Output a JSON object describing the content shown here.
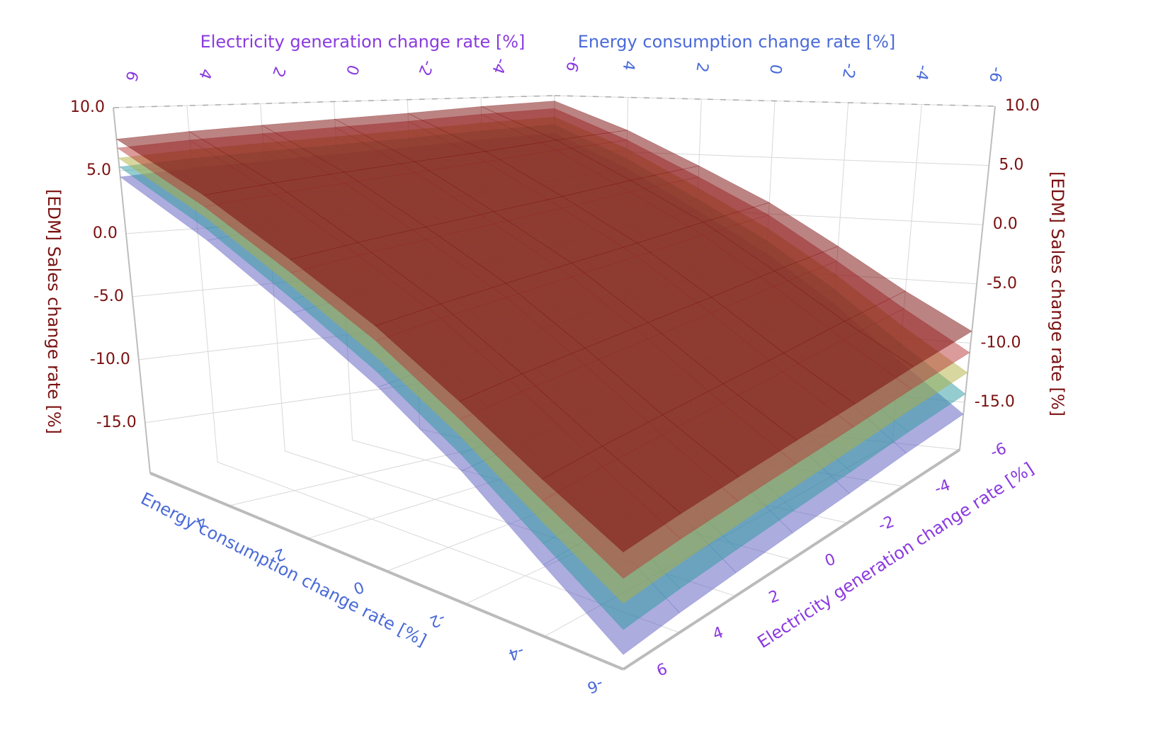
{
  "chart_data": {
    "type": "surface3d",
    "x_label": "Energy consumption change rate [%]",
    "y_label": "Electricity generation change rate [%]",
    "z_label": "[EDM] Sales change rate [%]",
    "x": [
      -6,
      -4,
      -2,
      0,
      2,
      4,
      6
    ],
    "y": [
      -6,
      -4,
      -2,
      0,
      2,
      4,
      6
    ],
    "xlim": [
      -6,
      6
    ],
    "ylim": [
      -6,
      6
    ],
    "zlim": [
      -19,
      10
    ],
    "xticks": [
      -6,
      -4,
      -2,
      0,
      2,
      4
    ],
    "yticks": [
      -6,
      -4,
      -2,
      0,
      2,
      4,
      6
    ],
    "zticks": [
      {
        "value": -15,
        "label": "-15.0"
      },
      {
        "value": -10,
        "label": "-10.0"
      },
      {
        "value": -5,
        "label": "-5.0"
      },
      {
        "value": 0,
        "label": "0.0"
      },
      {
        "value": 5,
        "label": "5.0"
      },
      {
        "value": 10,
        "label": "10.0"
      }
    ],
    "grid": true,
    "series": [
      {
        "color": "#5a5ac0",
        "values": [
          [
            -16,
            -16.3,
            -16.7,
            -17,
            -17.3,
            -17.6,
            -18
          ],
          [
            -12,
            -12.3,
            -12.7,
            -13,
            -13.3,
            -13.6,
            -14
          ],
          [
            -7.5,
            -7.8,
            -8.2,
            -8.5,
            -8.8,
            -9.1,
            -9.5
          ],
          [
            -3.5,
            -3.8,
            -4.2,
            -4.5,
            -4.8,
            -5.1,
            -5.5
          ],
          [
            0,
            -0.3,
            -0.7,
            -1,
            -1.3,
            -1.6,
            -2
          ],
          [
            3.5,
            3.2,
            2.8,
            2.5,
            2.2,
            1.9,
            1.5
          ],
          [
            6.5,
            6.2,
            5.8,
            5.5,
            5.2,
            4.9,
            4.5
          ]
        ]
      },
      {
        "color": "#2a9aa0",
        "values": [
          [
            -14.3,
            -14.6,
            -15,
            -15.3,
            -15.6,
            -15.9,
            -16.3
          ],
          [
            -10.5,
            -10.8,
            -11.2,
            -11.5,
            -11.8,
            -12.1,
            -12.5
          ],
          [
            -6.3,
            -6.6,
            -7,
            -7.3,
            -7.6,
            -7.9,
            -8.3
          ],
          [
            -2.4,
            -2.7,
            -3.1,
            -3.4,
            -3.7,
            -4,
            -4.4
          ],
          [
            1,
            0.7,
            0.3,
            0,
            -0.3,
            -0.6,
            -1
          ],
          [
            4.4,
            4.1,
            3.7,
            3.4,
            3.1,
            2.8,
            2.4
          ],
          [
            7.3,
            7,
            6.6,
            6.3,
            6,
            5.7,
            5.3
          ]
        ]
      },
      {
        "color": "#b0b040",
        "values": [
          [
            -12.5,
            -12.8,
            -13.2,
            -13.5,
            -13.8,
            -14.1,
            -14.5
          ],
          [
            -9,
            -9.3,
            -9.7,
            -10,
            -10.3,
            -10.6,
            -11
          ],
          [
            -5,
            -5.3,
            -5.7,
            -6,
            -6.3,
            -6.6,
            -7
          ],
          [
            -1.3,
            -1.6,
            -2,
            -2.3,
            -2.6,
            -2.9,
            -3.3
          ],
          [
            2,
            1.7,
            1.3,
            1,
            0.7,
            0.4,
            0
          ],
          [
            5.3,
            5,
            4.6,
            4.3,
            4,
            3.7,
            3.3
          ],
          [
            8,
            7.7,
            7.3,
            7,
            6.7,
            6.4,
            6
          ]
        ]
      },
      {
        "color": "#b83838",
        "values": [
          [
            -10.8,
            -11.1,
            -11.5,
            -11.8,
            -12.1,
            -12.4,
            -12.8
          ],
          [
            -7.5,
            -7.8,
            -8.2,
            -8.5,
            -8.8,
            -9.1,
            -9.5
          ],
          [
            -3.8,
            -4.1,
            -4.5,
            -4.8,
            -5.1,
            -5.4,
            -5.8
          ],
          [
            -0.1,
            -0.4,
            -0.8,
            -1.1,
            -1.4,
            -1.7,
            -2.1
          ],
          [
            3,
            2.7,
            2.3,
            2,
            1.7,
            1.4,
            1
          ],
          [
            6.1,
            5.8,
            5.4,
            5.1,
            4.8,
            4.5,
            4.1
          ],
          [
            8.8,
            8.5,
            8.1,
            7.8,
            7.5,
            7.2,
            6.8
          ]
        ]
      },
      {
        "color": "#7a0808",
        "values": [
          [
            -9,
            -9.3,
            -9.7,
            -10,
            -10.3,
            -10.6,
            -11
          ],
          [
            -6,
            -6.3,
            -6.7,
            -7,
            -7.3,
            -7.6,
            -8
          ],
          [
            -2.5,
            -2.8,
            -3.2,
            -3.5,
            -3.8,
            -4.1,
            -4.5
          ],
          [
            1,
            0.7,
            0.3,
            0,
            -0.3,
            -0.6,
            -1
          ],
          [
            4,
            3.7,
            3.3,
            3,
            2.7,
            2.4,
            2
          ],
          [
            7,
            6.7,
            6.3,
            6,
            5.7,
            5.4,
            5
          ],
          [
            9.5,
            9.2,
            8.8,
            8.5,
            8.2,
            7.9,
            7.5
          ]
        ]
      }
    ]
  }
}
